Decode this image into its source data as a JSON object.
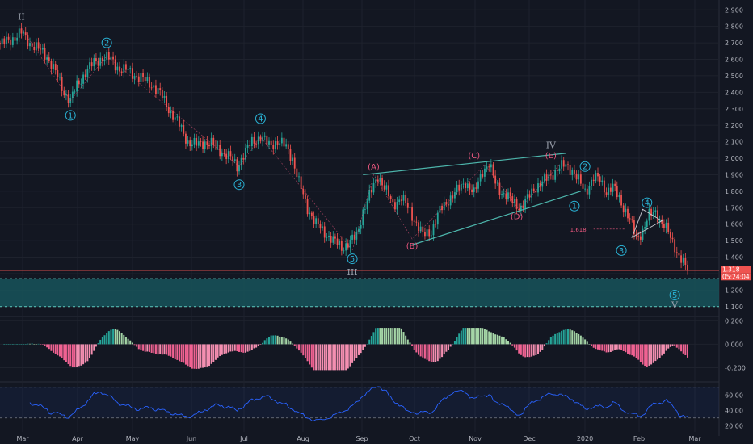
{
  "chart_data": {
    "type": "candlestick",
    "main": {
      "ylim": [
        1.05,
        2.96
      ],
      "y_ticks": [
        "2.900",
        "2.800",
        "2.700",
        "2.600",
        "2.500",
        "2.400",
        "2.300",
        "2.200",
        "2.100",
        "2.000",
        "1.900",
        "1.800",
        "1.700",
        "1.600",
        "1.500",
        "1.400",
        "1.300",
        "1.200",
        "1.100"
      ],
      "x_ticks": [
        "Mar",
        "Apr",
        "May",
        "Jun",
        "Jul",
        "Aug",
        "Sep",
        "Oct",
        "Nov",
        "Dec",
        "2020",
        "Feb",
        "Mar"
      ],
      "close_path": [
        [
          0,
          2.69
        ],
        [
          5,
          2.72
        ],
        [
          10,
          2.76
        ],
        [
          14,
          2.7
        ],
        [
          18,
          2.66
        ],
        [
          22,
          2.62
        ],
        [
          26,
          2.52
        ],
        [
          30,
          2.4
        ],
        [
          33,
          2.35
        ],
        [
          36,
          2.44
        ],
        [
          40,
          2.52
        ],
        [
          44,
          2.58
        ],
        [
          48,
          2.61
        ],
        [
          52,
          2.6
        ],
        [
          56,
          2.54
        ],
        [
          60,
          2.53
        ],
        [
          64,
          2.5
        ],
        [
          68,
          2.47
        ],
        [
          72,
          2.44
        ],
        [
          76,
          2.37
        ],
        [
          80,
          2.28
        ],
        [
          84,
          2.2
        ],
        [
          88,
          2.1
        ],
        [
          92,
          2.08
        ],
        [
          96,
          2.1
        ],
        [
          100,
          2.08
        ],
        [
          104,
          2.04
        ],
        [
          108,
          2.0
        ],
        [
          111,
          1.95
        ],
        [
          114,
          2.02
        ],
        [
          118,
          2.1
        ],
        [
          122,
          2.13
        ],
        [
          126,
          2.08
        ],
        [
          130,
          2.1
        ],
        [
          134,
          2.07
        ],
        [
          137,
          2.0
        ],
        [
          140,
          1.85
        ],
        [
          144,
          1.7
        ],
        [
          148,
          1.6
        ],
        [
          152,
          1.55
        ],
        [
          156,
          1.5
        ],
        [
          160,
          1.46
        ],
        [
          164,
          1.49
        ],
        [
          167,
          1.53
        ],
        [
          170,
          1.68
        ],
        [
          174,
          1.8
        ],
        [
          177,
          1.9
        ],
        [
          180,
          1.82
        ],
        [
          184,
          1.72
        ],
        [
          188,
          1.76
        ],
        [
          192,
          1.68
        ],
        [
          196,
          1.58
        ],
        [
          198,
          1.53
        ],
        [
          202,
          1.56
        ],
        [
          206,
          1.68
        ],
        [
          210,
          1.75
        ],
        [
          214,
          1.8
        ],
        [
          218,
          1.86
        ],
        [
          222,
          1.78
        ],
        [
          226,
          1.93
        ],
        [
          229,
          1.96
        ],
        [
          232,
          1.85
        ],
        [
          236,
          1.78
        ],
        [
          240,
          1.74
        ],
        [
          244,
          1.7
        ],
        [
          246,
          1.73
        ],
        [
          250,
          1.82
        ],
        [
          254,
          1.85
        ],
        [
          258,
          1.9
        ],
        [
          262,
          1.94
        ],
        [
          265,
          1.96
        ],
        [
          268,
          1.93
        ],
        [
          271,
          1.86
        ],
        [
          274,
          1.8
        ],
        [
          278,
          1.88
        ],
        [
          281,
          1.87
        ],
        [
          284,
          1.8
        ],
        [
          287,
          1.82
        ],
        [
          290,
          1.76
        ],
        [
          294,
          1.65
        ],
        [
          298,
          1.52
        ],
        [
          301,
          1.56
        ],
        [
          304,
          1.65
        ],
        [
          307,
          1.68
        ],
        [
          310,
          1.6
        ],
        [
          313,
          1.55
        ],
        [
          316,
          1.47
        ],
        [
          318,
          1.4
        ],
        [
          320,
          1.36
        ],
        [
          322,
          1.318
        ]
      ],
      "last_price": "1.318",
      "countdown": "05:24:04",
      "fib_label": "1.618",
      "fib_price": 1.57,
      "support_zone": [
        1.1,
        1.27
      ],
      "elliott_labels": [
        {
          "text": "II",
          "roman": true,
          "i": 10,
          "p": 2.86
        },
        {
          "text": "1",
          "i": 33,
          "p": 2.26
        },
        {
          "text": "2",
          "i": 50,
          "p": 2.7
        },
        {
          "text": "3",
          "i": 112,
          "p": 1.84
        },
        {
          "text": "4",
          "i": 122,
          "p": 2.24
        },
        {
          "text": "5",
          "i": 165,
          "p": 1.39
        },
        {
          "text": "III",
          "roman": true,
          "i": 165,
          "p": 1.31
        },
        {
          "text": "(A)",
          "red": true,
          "i": 175,
          "p": 1.95
        },
        {
          "text": "(B)",
          "red": true,
          "i": 193,
          "p": 1.47
        },
        {
          "text": "(C)",
          "red": true,
          "i": 222,
          "p": 2.02
        },
        {
          "text": "(D)",
          "red": true,
          "i": 242,
          "p": 1.65
        },
        {
          "text": "(E)",
          "red": true,
          "i": 258,
          "p": 2.02
        },
        {
          "text": "IV",
          "roman": true,
          "i": 258,
          "p": 2.08
        },
        {
          "text": "1",
          "i": 269,
          "p": 1.71
        },
        {
          "text": "2",
          "i": 274,
          "p": 1.95
        },
        {
          "text": "3",
          "i": 291,
          "p": 1.44
        },
        {
          "text": "4",
          "i": 303,
          "p": 1.73
        },
        {
          "text": "5",
          "i": 316,
          "p": 1.17
        },
        {
          "text": "V",
          "roman": true,
          "i": 316,
          "p": 1.11
        }
      ]
    },
    "macd": {
      "ylim": [
        -0.3,
        0.23
      ],
      "y_ticks": [
        "0.200",
        "0.000",
        "-0.200"
      ],
      "x_range": [
        0,
        322
      ]
    },
    "rsi": {
      "ylim": [
        15,
        75
      ],
      "y_ticks": [
        "60.00",
        "40.00",
        "20.00"
      ],
      "band": [
        30,
        70
      ]
    },
    "colors": {
      "up": "#26a69a",
      "down": "#ef5350",
      "macd_up": "#26a69a",
      "macd_down": "#f06292",
      "rsi": "#2962ff",
      "wave": "#2ab3d6",
      "channel": "#4db6ac",
      "zone": "#17535a"
    }
  }
}
